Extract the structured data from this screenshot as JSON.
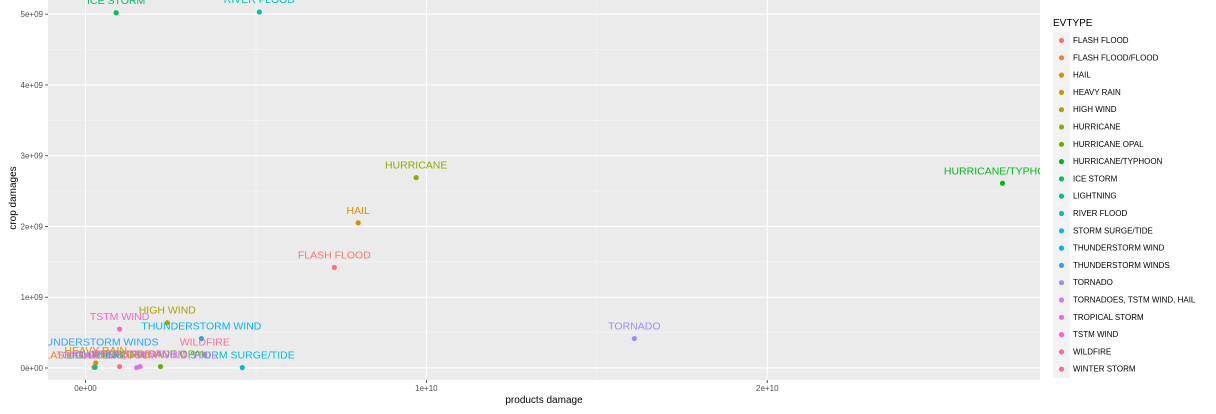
{
  "chart_data": {
    "type": "scatter",
    "title": "",
    "xlabel": "products damage",
    "ylabel": "crop damages",
    "xlim": [
      -1100000000.0,
      28000000000.0
    ],
    "ylim": [
      -170000000.0,
      5200000000.0
    ],
    "x_ticks": [
      {
        "value": 0,
        "label": "0e+00"
      },
      {
        "value": 10000000000.0,
        "label": "1e+10"
      },
      {
        "value": 20000000000.0,
        "label": "2e+10"
      }
    ],
    "y_ticks": [
      {
        "value": 0,
        "label": "0e+00"
      },
      {
        "value": 1000000000.0,
        "label": "1e+09"
      },
      {
        "value": 2000000000.0,
        "label": "2e+09"
      },
      {
        "value": 3000000000.0,
        "label": "3e+09"
      },
      {
        "value": 4000000000.0,
        "label": "4e+09"
      },
      {
        "value": 5000000000.0,
        "label": "5e+09"
      }
    ],
    "grid": true,
    "legend": {
      "title": "EVTYPE",
      "position": "right",
      "entries": [
        {
          "name": "FLASH FLOOD",
          "color": "#F8766D"
        },
        {
          "name": "FLASH FLOOD/FLOOD",
          "color": "#EC8239"
        },
        {
          "name": "HAIL",
          "color": "#DB8E00"
        },
        {
          "name": "HEAVY RAIN",
          "color": "#C79800"
        },
        {
          "name": "HIGH WIND",
          "color": "#AEA200"
        },
        {
          "name": "HURRICANE",
          "color": "#8FAA00"
        },
        {
          "name": "HURRICANE OPAL",
          "color": "#64B200"
        },
        {
          "name": "HURRICANE/TYPHOON",
          "color": "#00B81B"
        },
        {
          "name": "ICE STORM",
          "color": "#00BD5C"
        },
        {
          "name": "LIGHTNING",
          "color": "#00C08E"
        },
        {
          "name": "RIVER FLOOD",
          "color": "#00C1B2"
        },
        {
          "name": "STORM SURGE/TIDE",
          "color": "#00BCD6"
        },
        {
          "name": "THUNDERSTORM WIND",
          "color": "#00B3F2"
        },
        {
          "name": "THUNDERSTORM WINDS",
          "color": "#29A3FF"
        },
        {
          "name": "TORNADO",
          "color": "#9C8DFF"
        },
        {
          "name": "TORNADOES, TSTM WIND, HAIL",
          "color": "#D277FF"
        },
        {
          "name": "TROPICAL STORM",
          "color": "#F166E8"
        },
        {
          "name": "TSTM WIND",
          "color": "#FF61C7"
        },
        {
          "name": "WILDFIRE",
          "color": "#FF689E"
        },
        {
          "name": "WINTER STORM",
          "color": "#FF6C91"
        }
      ]
    },
    "points": [
      {
        "label": "ICE STORM",
        "x": 900000000.0,
        "y": 5020000000.0,
        "color": "#00BD5C"
      },
      {
        "label": "RIVER FLOOD",
        "x": 5100000000.0,
        "y": 5030000000.0,
        "color": "#00C1B2"
      },
      {
        "label": "HURRICANE",
        "x": 9700000000.0,
        "y": 2690000000.0,
        "color": "#8FAA00"
      },
      {
        "label": "HAIL",
        "x": 8000000000.0,
        "y": 2050000000.0,
        "color": "#DB8E00"
      },
      {
        "label": "FLASH FLOOD",
        "x": 7300000000.0,
        "y": 1420000000.0,
        "color": "#F8766D"
      },
      {
        "label": "HURRICANE/TYPHOON",
        "x": 26900000000.0,
        "y": 2610000000.0,
        "color": "#00B81B"
      },
      {
        "label": "TORNADO",
        "x": 16100000000.0,
        "y": 415000000.0,
        "color": "#9C8DFF"
      },
      {
        "label": "HIGH WIND",
        "x": 2400000000.0,
        "y": 640000000.0,
        "color": "#AEA200"
      },
      {
        "label": "THUNDERSTORM WIND",
        "x": 3400000000.0,
        "y": 415000000.0,
        "color": "#00B3F2"
      },
      {
        "label": "TSTM WIND",
        "x": 1000000000.0,
        "y": 550000000.0,
        "color": "#FF61C7"
      },
      {
        "label": "TROPICAL STORM",
        "x": 1600000000.0,
        "y": 20000000.0,
        "color": "#F166E8"
      },
      {
        "label": "THUNDERSTORM WINDS",
        "x": 280000000.0,
        "y": 190000000.0,
        "color": "#29A3FF"
      },
      {
        "label": "WILDFIRE",
        "x": 3500000000.0,
        "y": 190000000.0,
        "color": "#FF689E"
      },
      {
        "label": "STORM SURGE/TIDE",
        "x": 4600000000.0,
        "y": 5000000.0,
        "color": "#00BCD6"
      },
      {
        "label": "HURRICANE OPAL",
        "x": 2200000000.0,
        "y": 20000000.0,
        "color": "#64B200"
      },
      {
        "label": "WINTER STORM",
        "x": 1000000000.0,
        "y": 20000000.0,
        "color": "#FF6C91"
      },
      {
        "label": "HEAVY RAIN",
        "x": 300000000.0,
        "y": 70000000.0,
        "color": "#C79800"
      },
      {
        "label": "FLASH FLOOD/FLOOD",
        "x": 250000000.0,
        "y": 10000000.0,
        "color": "#EC8239"
      },
      {
        "label": "LIGHTNING",
        "x": 280000000.0,
        "y": 10000000.0,
        "color": "#00C08E"
      },
      {
        "label": "TORNADOES, TSTM WIND, HAIL",
        "x": 1500000000.0,
        "y": 5000000.0,
        "color": "#D277FF"
      }
    ]
  }
}
